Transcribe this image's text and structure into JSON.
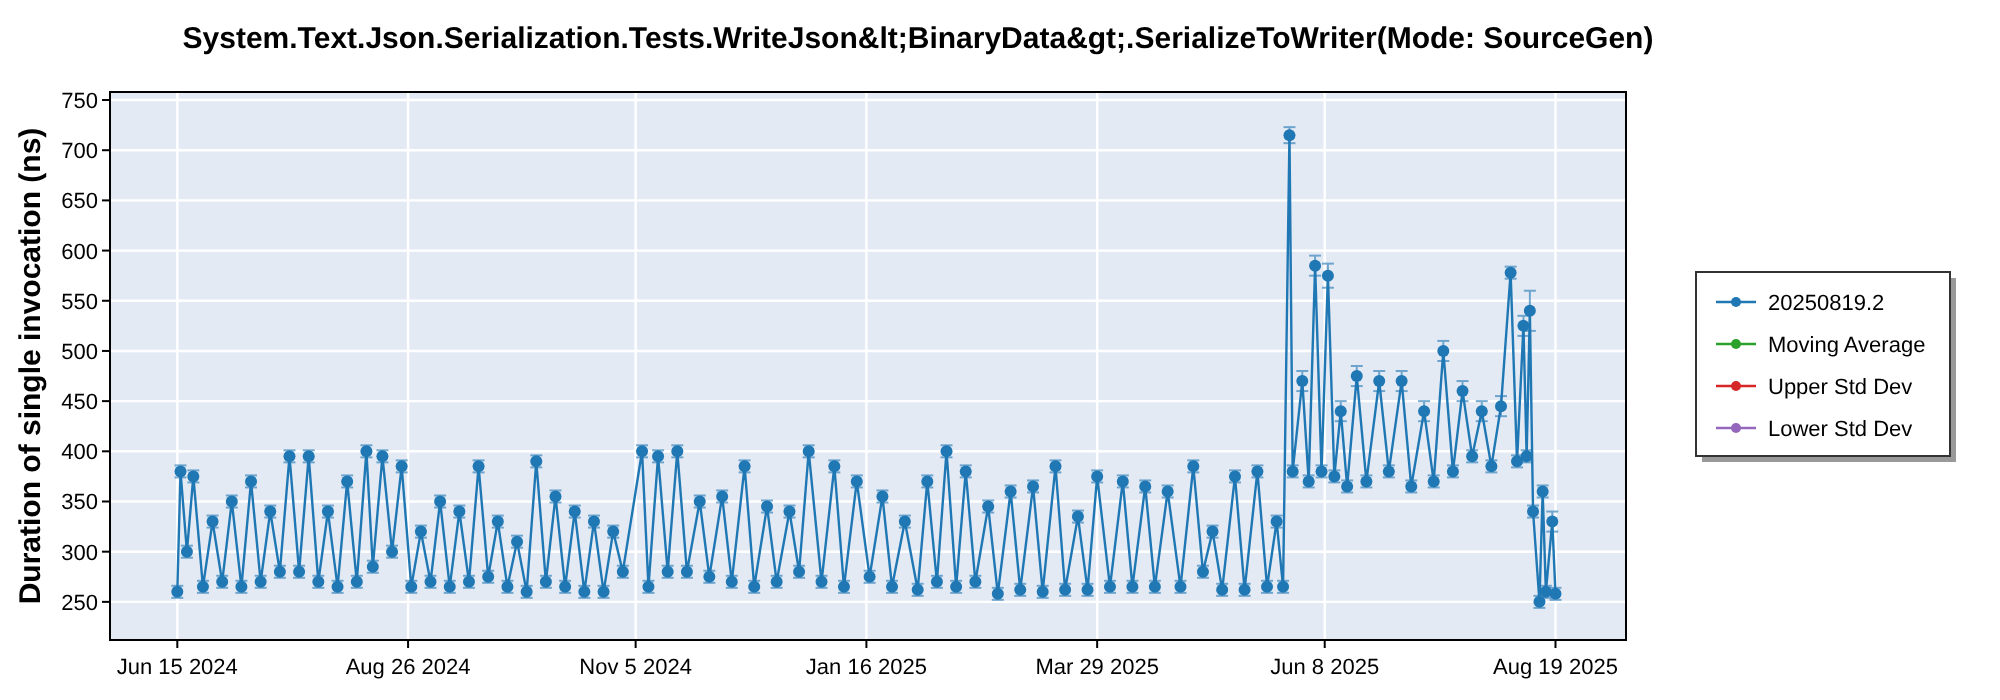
{
  "chart_data": {
    "type": "line",
    "title": "System.Text.Json.Serialization.Tests.WriteJson&lt;BinaryData&gt;.SerializeToWriter(Mode: SourceGen)",
    "ylabel": "Duration of single invocation (ns)",
    "xlim": [
      "2024-05-25",
      "2025-09-10"
    ],
    "xticks": [
      {
        "value": "2024-06-15",
        "label": "Jun 15 2024"
      },
      {
        "value": "2024-08-26",
        "label": "Aug 26 2024"
      },
      {
        "value": "2024-11-05",
        "label": "Nov 5 2024"
      },
      {
        "value": "2025-01-16",
        "label": "Jan 16 2025"
      },
      {
        "value": "2025-03-29",
        "label": "Mar 29 2025"
      },
      {
        "value": "2025-06-08",
        "label": "Jun 8 2025"
      },
      {
        "value": "2025-08-19",
        "label": "Aug 19 2025"
      }
    ],
    "ylim": [
      212,
      758
    ],
    "yticks": [
      250,
      300,
      350,
      400,
      450,
      500,
      550,
      600,
      650,
      700,
      750
    ],
    "grid": true,
    "legend": "right",
    "marker": "circle",
    "line_style": "solid",
    "series": [
      {
        "name": "20250819.2",
        "color": "#1f77b4",
        "x": [
          "2024-06-15",
          "2024-06-16",
          "2024-06-18",
          "2024-06-20",
          "2024-06-23",
          "2024-06-26",
          "2024-06-29",
          "2024-07-02",
          "2024-07-05",
          "2024-07-08",
          "2024-07-11",
          "2024-07-14",
          "2024-07-17",
          "2024-07-20",
          "2024-07-23",
          "2024-07-26",
          "2024-07-29",
          "2024-08-01",
          "2024-08-04",
          "2024-08-07",
          "2024-08-10",
          "2024-08-13",
          "2024-08-15",
          "2024-08-18",
          "2024-08-21",
          "2024-08-24",
          "2024-08-27",
          "2024-08-30",
          "2024-09-02",
          "2024-09-05",
          "2024-09-08",
          "2024-09-11",
          "2024-09-14",
          "2024-09-17",
          "2024-09-20",
          "2024-09-23",
          "2024-09-26",
          "2024-09-29",
          "2024-10-02",
          "2024-10-05",
          "2024-10-08",
          "2024-10-11",
          "2024-10-14",
          "2024-10-17",
          "2024-10-20",
          "2024-10-23",
          "2024-10-26",
          "2024-10-29",
          "2024-11-01",
          "2024-11-07",
          "2024-11-09",
          "2024-11-12",
          "2024-11-15",
          "2024-11-18",
          "2024-11-21",
          "2024-11-25",
          "2024-11-28",
          "2024-12-02",
          "2024-12-05",
          "2024-12-09",
          "2024-12-12",
          "2024-12-16",
          "2024-12-19",
          "2024-12-23",
          "2024-12-26",
          "2024-12-29",
          "2025-01-02",
          "2025-01-06",
          "2025-01-09",
          "2025-01-13",
          "2025-01-17",
          "2025-01-21",
          "2025-01-24",
          "2025-01-28",
          "2025-02-01",
          "2025-02-04",
          "2025-02-07",
          "2025-02-10",
          "2025-02-13",
          "2025-02-16",
          "2025-02-19",
          "2025-02-23",
          "2025-02-26",
          "2025-03-02",
          "2025-03-05",
          "2025-03-09",
          "2025-03-12",
          "2025-03-16",
          "2025-03-19",
          "2025-03-23",
          "2025-03-26",
          "2025-03-29",
          "2025-04-02",
          "2025-04-06",
          "2025-04-09",
          "2025-04-13",
          "2025-04-16",
          "2025-04-20",
          "2025-04-24",
          "2025-04-28",
          "2025-05-01",
          "2025-05-04",
          "2025-05-07",
          "2025-05-11",
          "2025-05-14",
          "2025-05-18",
          "2025-05-21",
          "2025-05-24",
          "2025-05-26",
          "2025-05-28",
          "2025-05-29",
          "2025-06-01",
          "2025-06-03",
          "2025-06-05",
          "2025-06-07",
          "2025-06-09",
          "2025-06-11",
          "2025-06-13",
          "2025-06-15",
          "2025-06-18",
          "2025-06-21",
          "2025-06-25",
          "2025-06-28",
          "2025-07-02",
          "2025-07-05",
          "2025-07-09",
          "2025-07-12",
          "2025-07-15",
          "2025-07-18",
          "2025-07-21",
          "2025-07-24",
          "2025-07-27",
          "2025-07-30",
          "2025-08-02",
          "2025-08-05",
          "2025-08-07",
          "2025-08-09",
          "2025-08-10",
          "2025-08-11",
          "2025-08-12",
          "2025-08-14",
          "2025-08-15",
          "2025-08-16",
          "2025-08-18",
          "2025-08-19"
        ],
        "values": [
          260,
          380,
          300,
          375,
          265,
          330,
          270,
          350,
          265,
          370,
          270,
          340,
          280,
          395,
          280,
          395,
          270,
          340,
          265,
          370,
          270,
          400,
          285,
          395,
          300,
          385,
          265,
          320,
          270,
          350,
          265,
          340,
          270,
          385,
          275,
          330,
          265,
          310,
          260,
          390,
          270,
          355,
          265,
          340,
          260,
          330,
          260,
          320,
          280,
          400,
          265,
          395,
          280,
          400,
          280,
          350,
          275,
          355,
          270,
          385,
          265,
          345,
          270,
          340,
          280,
          400,
          270,
          385,
          265,
          370,
          275,
          355,
          265,
          330,
          262,
          370,
          270,
          400,
          265,
          380,
          270,
          345,
          258,
          360,
          262,
          365,
          260,
          385,
          262,
          335,
          262,
          375,
          265,
          370,
          265,
          365,
          265,
          360,
          265,
          385,
          280,
          320,
          262,
          375,
          262,
          380,
          265,
          330,
          265,
          715,
          380,
          470,
          370,
          585,
          380,
          575,
          375,
          440,
          365,
          475,
          370,
          470,
          380,
          470,
          365,
          440,
          370,
          500,
          380,
          460,
          395,
          440,
          385,
          445,
          578,
          390,
          525,
          395,
          540,
          340,
          250,
          360,
          260,
          330,
          258
        ],
        "errors": [
          6,
          6,
          6,
          6,
          6,
          6,
          6,
          6,
          6,
          6,
          6,
          6,
          6,
          6,
          6,
          6,
          6,
          6,
          6,
          6,
          6,
          6,
          6,
          6,
          6,
          6,
          6,
          6,
          6,
          6,
          6,
          6,
          6,
          6,
          6,
          6,
          6,
          6,
          6,
          6,
          6,
          6,
          6,
          6,
          6,
          6,
          6,
          6,
          6,
          6,
          6,
          6,
          6,
          6,
          6,
          6,
          6,
          6,
          6,
          6,
          6,
          6,
          6,
          6,
          6,
          6,
          6,
          6,
          6,
          6,
          6,
          6,
          6,
          6,
          6,
          6,
          6,
          6,
          6,
          6,
          6,
          6,
          6,
          6,
          6,
          6,
          6,
          6,
          6,
          6,
          6,
          6,
          6,
          6,
          6,
          6,
          6,
          6,
          6,
          6,
          6,
          6,
          6,
          6,
          6,
          6,
          6,
          6,
          6,
          8,
          6,
          10,
          6,
          10,
          6,
          12,
          6,
          10,
          6,
          10,
          6,
          10,
          6,
          10,
          6,
          10,
          6,
          10,
          6,
          10,
          6,
          10,
          6,
          10,
          6,
          6,
          10,
          6,
          20,
          6,
          6,
          6,
          6,
          10,
          6
        ]
      },
      {
        "name": "Moving Average",
        "color": "#2ca02c"
      },
      {
        "name": "Upper Std Dev",
        "color": "#d62728"
      },
      {
        "name": "Lower Std Dev",
        "color": "#9467bd"
      }
    ]
  }
}
